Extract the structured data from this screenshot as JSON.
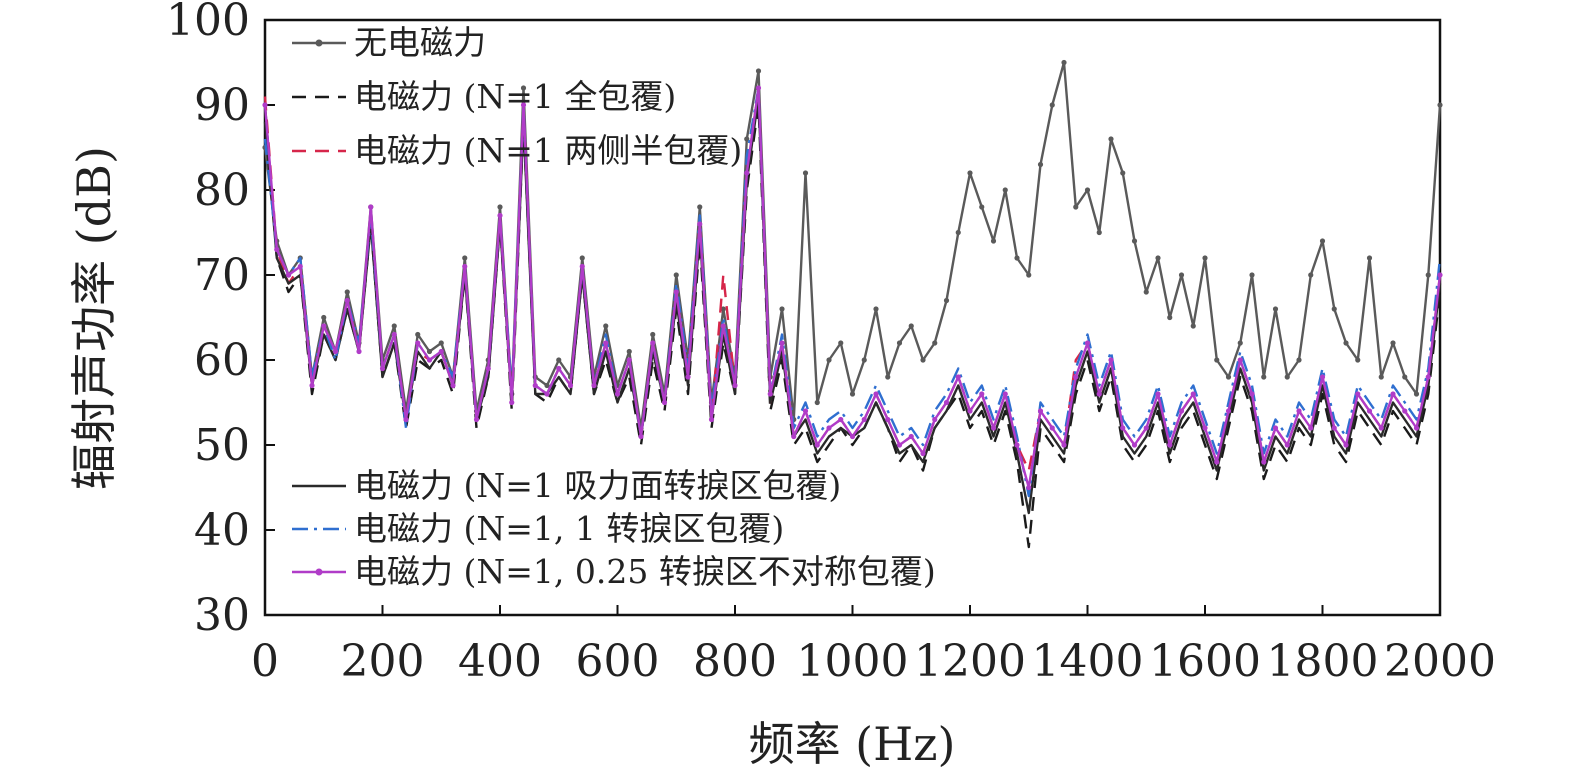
{
  "chart_data": {
    "type": "line",
    "xlabel": "频率 (Hz)",
    "ylabel": "辐射声功率 (dB)",
    "xlim": [
      0,
      2000
    ],
    "ylim": [
      30,
      100
    ],
    "xticks": [
      "0",
      "200",
      "400",
      "600",
      "800",
      "1000",
      "1200",
      "1400",
      "1600",
      "1800",
      "2000"
    ],
    "yticks": [
      "30",
      "40",
      "50",
      "60",
      "70",
      "80",
      "90",
      "100"
    ],
    "grid": false,
    "legend_placement": "top-left and bottom-left inside plot",
    "x": [
      0,
      20,
      40,
      60,
      80,
      100,
      120,
      140,
      160,
      180,
      200,
      220,
      240,
      260,
      280,
      300,
      320,
      340,
      360,
      380,
      400,
      420,
      440,
      460,
      480,
      500,
      520,
      540,
      560,
      580,
      600,
      620,
      640,
      660,
      680,
      700,
      720,
      740,
      760,
      780,
      800,
      820,
      840,
      860,
      880,
      900,
      920,
      940,
      960,
      980,
      1000,
      1020,
      1040,
      1060,
      1080,
      1100,
      1120,
      1140,
      1160,
      1180,
      1200,
      1220,
      1240,
      1260,
      1280,
      1300,
      1320,
      1340,
      1360,
      1380,
      1400,
      1420,
      1440,
      1460,
      1480,
      1500,
      1520,
      1540,
      1560,
      1580,
      1600,
      1620,
      1640,
      1660,
      1680,
      1700,
      1720,
      1740,
      1760,
      1780,
      1800,
      1820,
      1840,
      1860,
      1880,
      1900,
      1920,
      1940,
      1960,
      1980,
      2000
    ],
    "series": [
      {
        "name": "无电磁力",
        "color": "#5a5a5a",
        "style": "solid-marker",
        "values": [
          85,
          74,
          70,
          72,
          58,
          65,
          61,
          68,
          62,
          78,
          60,
          64,
          54,
          63,
          61,
          62,
          58,
          72,
          54,
          60,
          78,
          56,
          92,
          58,
          57,
          60,
          58,
          72,
          58,
          64,
          57,
          61,
          52,
          63,
          56,
          70,
          60,
          78,
          55,
          66,
          58,
          86,
          94,
          58,
          66,
          53,
          82,
          55,
          60,
          62,
          56,
          60,
          66,
          58,
          62,
          64,
          60,
          62,
          67,
          75,
          82,
          78,
          74,
          80,
          72,
          70,
          83,
          90,
          95,
          78,
          80,
          75,
          86,
          82,
          74,
          68,
          72,
          65,
          70,
          64,
          72,
          60,
          58,
          62,
          70,
          58,
          66,
          58,
          60,
          70,
          74,
          66,
          62,
          60,
          72,
          58,
          62,
          58,
          56,
          70,
          90
        ]
      },
      {
        "name": "电磁力 (N=1 全包覆)",
        "color": "#1a1a1a",
        "style": "dashed",
        "values": [
          90,
          72,
          68,
          70,
          56,
          63,
          60,
          66,
          61,
          76,
          58,
          62,
          52,
          60,
          59,
          60,
          56,
          70,
          52,
          58,
          76,
          54,
          88,
          56,
          55,
          58,
          56,
          70,
          56,
          60,
          55,
          58,
          50,
          60,
          54,
          66,
          56,
          74,
          52,
          62,
          56,
          80,
          90,
          54,
          60,
          50,
          52,
          48,
          50,
          52,
          50,
          52,
          55,
          52,
          48,
          50,
          47,
          52,
          54,
          56,
          52,
          54,
          50,
          54,
          48,
          38,
          52,
          50,
          48,
          56,
          60,
          54,
          58,
          50,
          48,
          50,
          54,
          48,
          52,
          54,
          50,
          46,
          52,
          58,
          54,
          46,
          50,
          48,
          52,
          50,
          56,
          50,
          48,
          54,
          52,
          50,
          54,
          52,
          50,
          56,
          68
        ]
      },
      {
        "name": "电磁力 (N=1 两侧半包覆)",
        "color": "#d6264a",
        "style": "dashed",
        "values": [
          91,
          73,
          69,
          71,
          57,
          64,
          61,
          67,
          61,
          77,
          59,
          63,
          53,
          61,
          60,
          61,
          57,
          71,
          53,
          59,
          77,
          55,
          90,
          57,
          56,
          59,
          57,
          71,
          57,
          62,
          56,
          60,
          51,
          62,
          55,
          68,
          58,
          76,
          53,
          70,
          57,
          82,
          92,
          55,
          62,
          51,
          54,
          50,
          52,
          53,
          51,
          53,
          56,
          53,
          50,
          51,
          49,
          53,
          55,
          58,
          54,
          56,
          52,
          56,
          50,
          47,
          54,
          52,
          50,
          60,
          62,
          56,
          60,
          52,
          50,
          52,
          56,
          50,
          54,
          56,
          52,
          48,
          54,
          60,
          56,
          48,
          52,
          50,
          54,
          52,
          58,
          52,
          50,
          56,
          54,
          52,
          56,
          54,
          52,
          58,
          70
        ]
      },
      {
        "name": "电磁力 (N=1 吸力面转捩区包覆)",
        "color": "#2a2a2a",
        "style": "solid",
        "values": [
          88,
          72,
          69,
          70,
          57,
          63,
          60,
          66,
          61,
          76,
          58,
          62,
          53,
          61,
          59,
          61,
          57,
          70,
          53,
          58,
          76,
          55,
          88,
          56,
          56,
          58,
          56,
          70,
          56,
          61,
          55,
          59,
          51,
          61,
          55,
          67,
          57,
          75,
          53,
          63,
          56,
          81,
          91,
          55,
          61,
          51,
          53,
          49,
          51,
          52,
          51,
          52,
          55,
          52,
          49,
          50,
          48,
          52,
          54,
          57,
          53,
          55,
          51,
          55,
          49,
          42,
          53,
          51,
          49,
          57,
          61,
          55,
          59,
          51,
          49,
          51,
          55,
          49,
          53,
          55,
          51,
          47,
          53,
          59,
          55,
          47,
          51,
          49,
          53,
          51,
          57,
          51,
          49,
          55,
          53,
          51,
          55,
          53,
          51,
          57,
          69
        ]
      },
      {
        "name": "电磁力 (N=1, 1 转捩区包覆)",
        "color": "#2f6fd0",
        "style": "dashdot",
        "values": [
          86,
          73,
          70,
          72,
          58,
          64,
          60,
          67,
          62,
          77,
          59,
          63,
          52,
          62,
          60,
          61,
          58,
          71,
          53,
          59,
          77,
          56,
          90,
          57,
          56,
          59,
          57,
          71,
          57,
          63,
          56,
          60,
          51,
          62,
          55,
          69,
          59,
          77,
          54,
          65,
          57,
          84,
          92,
          56,
          63,
          52,
          55,
          51,
          53,
          54,
          52,
          54,
          57,
          54,
          51,
          52,
          50,
          54,
          56,
          59,
          55,
          57,
          53,
          57,
          51,
          44,
          55,
          53,
          51,
          59,
          63,
          57,
          61,
          53,
          51,
          53,
          57,
          51,
          55,
          57,
          53,
          49,
          55,
          61,
          57,
          49,
          53,
          51,
          55,
          53,
          59,
          53,
          51,
          57,
          55,
          53,
          57,
          55,
          53,
          59,
          72
        ]
      },
      {
        "name": "电磁力 (N=1, 0.25 转捩区不对称包覆)",
        "color": "#b03cc8",
        "style": "solid-marker",
        "values": [
          90,
          73,
          70,
          71,
          57,
          64,
          61,
          67,
          61,
          78,
          59,
          63,
          53,
          62,
          60,
          61,
          57,
          71,
          53,
          59,
          77,
          55,
          90,
          57,
          56,
          59,
          57,
          71,
          57,
          62,
          56,
          60,
          51,
          62,
          55,
          68,
          58,
          76,
          53,
          64,
          57,
          82,
          92,
          56,
          62,
          51,
          54,
          50,
          52,
          53,
          51,
          53,
          56,
          53,
          50,
          51,
          49,
          53,
          55,
          58,
          54,
          56,
          52,
          56,
          50,
          45,
          54,
          52,
          50,
          58,
          62,
          56,
          60,
          52,
          50,
          52,
          56,
          50,
          54,
          56,
          52,
          48,
          54,
          60,
          56,
          48,
          52,
          50,
          54,
          52,
          58,
          52,
          50,
          56,
          54,
          52,
          56,
          54,
          52,
          58,
          70
        ]
      }
    ]
  }
}
